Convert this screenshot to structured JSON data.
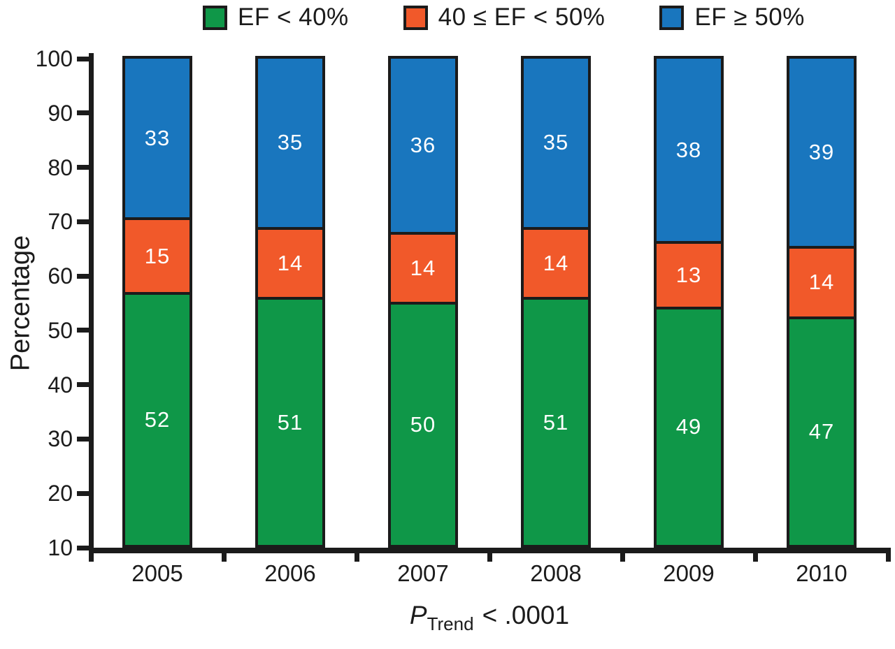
{
  "chart_data": {
    "type": "bar",
    "stacked": true,
    "title": "",
    "categories": [
      "2005",
      "2006",
      "2007",
      "2008",
      "2009",
      "2010"
    ],
    "series": [
      {
        "name": "EF < 40%",
        "color": "#0F9748",
        "values": [
          52,
          51,
          50,
          51,
          49,
          47
        ]
      },
      {
        "name": "40 ≤ EF < 50%",
        "color": "#F1592A",
        "values": [
          15,
          14,
          14,
          14,
          13,
          14
        ]
      },
      {
        "name": "EF ≥ 50%",
        "color": "#1976BE",
        "values": [
          33,
          35,
          36,
          35,
          38,
          39
        ]
      }
    ],
    "xlabel": "",
    "ylabel": "Percentage",
    "ylim": [
      10,
      100
    ],
    "yticks": [
      10,
      20,
      30,
      40,
      50,
      60,
      70,
      80,
      90,
      100
    ],
    "grid": false,
    "legend_position": "top",
    "bar_label_color": "#FFFFFF",
    "axis_color": "#1B1B1B",
    "caption": {
      "p": "P",
      "sub": "Trend",
      "rest": "< .0001",
      "text": "P_Trend < .0001"
    },
    "layout_hint": "100% stacked bars fill the full plot height; visible y-axis range starts at 10"
  }
}
